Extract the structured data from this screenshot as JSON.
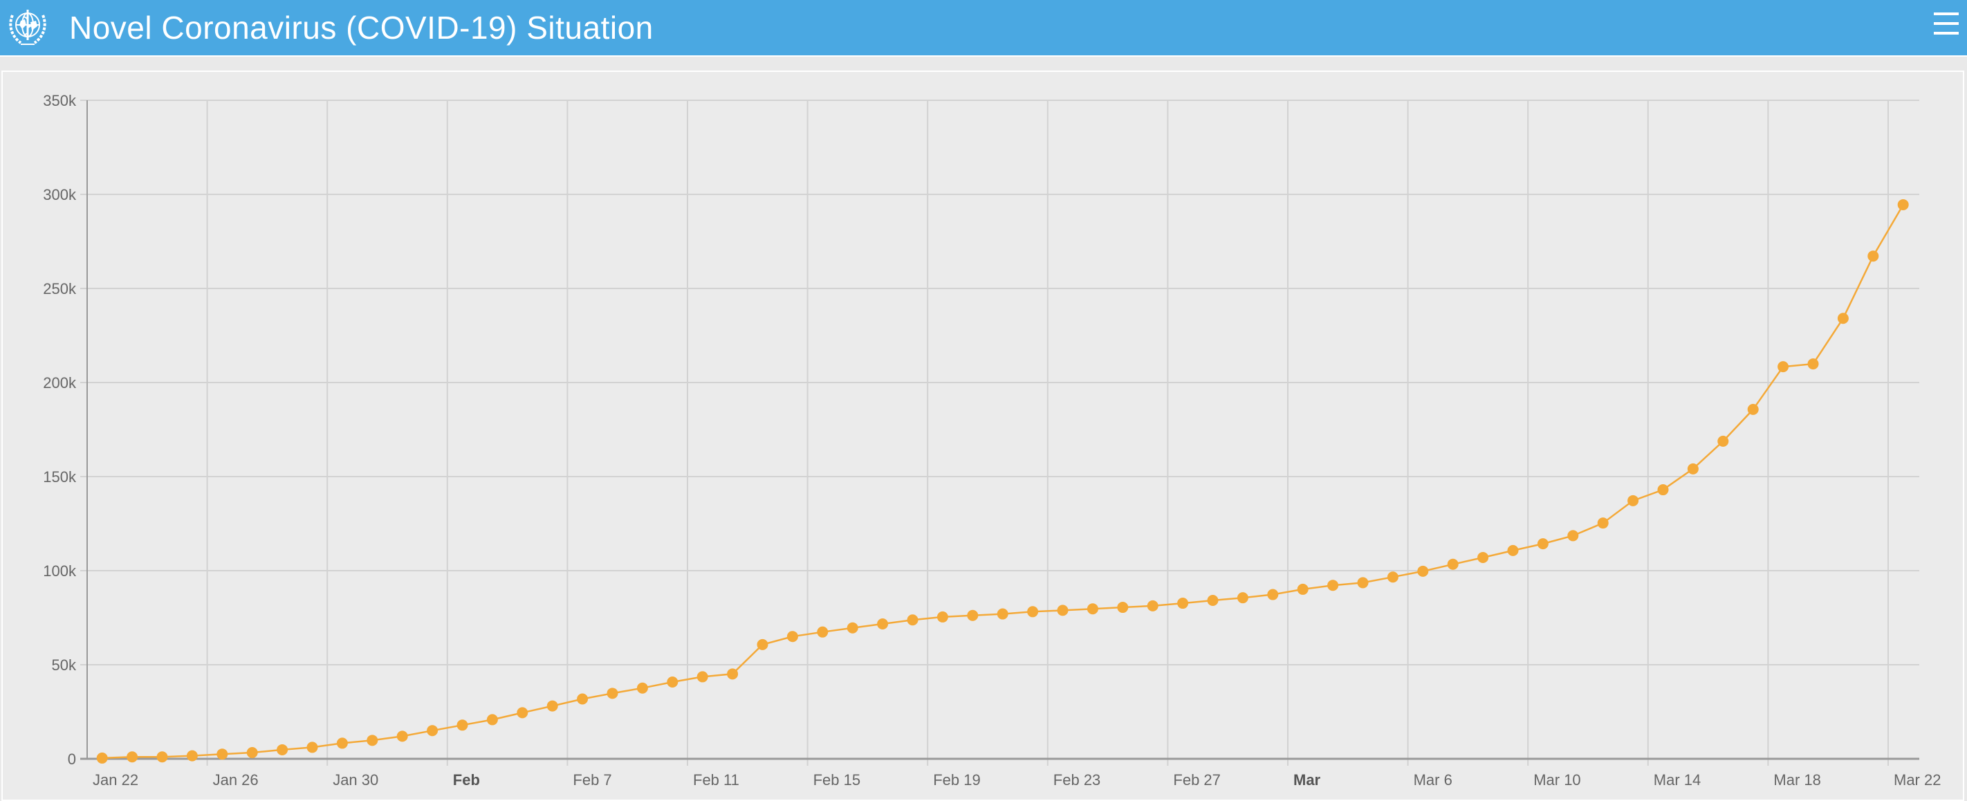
{
  "header": {
    "title": "Novel Coronavirus (COVID-19) Situation",
    "logo_icon": "who-emblem-icon",
    "menu_icon": "hamburger-menu-icon",
    "background_color": "#4aa8e2"
  },
  "chart_data": {
    "type": "line",
    "title": "",
    "xlabel": "",
    "ylabel": "",
    "x": [
      "2020-01-22",
      "2020-01-23",
      "2020-01-24",
      "2020-01-25",
      "2020-01-26",
      "2020-01-27",
      "2020-01-28",
      "2020-01-29",
      "2020-01-30",
      "2020-01-31",
      "2020-02-01",
      "2020-02-02",
      "2020-02-03",
      "2020-02-04",
      "2020-02-05",
      "2020-02-06",
      "2020-02-07",
      "2020-02-08",
      "2020-02-09",
      "2020-02-10",
      "2020-02-11",
      "2020-02-12",
      "2020-02-13",
      "2020-02-14",
      "2020-02-15",
      "2020-02-16",
      "2020-02-17",
      "2020-02-18",
      "2020-02-19",
      "2020-02-20",
      "2020-02-21",
      "2020-02-22",
      "2020-02-23",
      "2020-02-24",
      "2020-02-25",
      "2020-02-26",
      "2020-02-27",
      "2020-02-28",
      "2020-02-29",
      "2020-03-01",
      "2020-03-02",
      "2020-03-03",
      "2020-03-04",
      "2020-03-05",
      "2020-03-06",
      "2020-03-07",
      "2020-03-08",
      "2020-03-09",
      "2020-03-10",
      "2020-03-11",
      "2020-03-12",
      "2020-03-13",
      "2020-03-14",
      "2020-03-15",
      "2020-03-16",
      "2020-03-17",
      "2020-03-18",
      "2020-03-19",
      "2020-03-20",
      "2020-03-21",
      "2020-03-22"
    ],
    "y": [
      400,
      1000,
      1000,
      1600,
      2500,
      3300,
      4800,
      6100,
      8300,
      9800,
      12000,
      15000,
      17900,
      20800,
      24500,
      28100,
      31800,
      34800,
      37600,
      40800,
      43600,
      45100,
      60700,
      65000,
      67400,
      69600,
      71700,
      73800,
      75400,
      76200,
      77000,
      78200,
      78900,
      79700,
      80500,
      81300,
      82700,
      84200,
      85600,
      87300,
      90100,
      92200,
      93600,
      96600,
      99700,
      103400,
      107000,
      110700,
      114300,
      118600,
      125300,
      137200,
      143000,
      154100,
      168800,
      185700,
      208400,
      209900,
      234100,
      267200,
      294500
    ],
    "ylim": [
      0,
      350000
    ],
    "y_ticks": [
      {
        "value": 0,
        "label": "0"
      },
      {
        "value": 50000,
        "label": "50k"
      },
      {
        "value": 100000,
        "label": "100k"
      },
      {
        "value": 150000,
        "label": "150k"
      },
      {
        "value": 200000,
        "label": "200k"
      },
      {
        "value": 250000,
        "label": "250k"
      },
      {
        "value": 300000,
        "label": "300k"
      },
      {
        "value": 350000,
        "label": "350k"
      }
    ],
    "x_ticks": [
      {
        "label": "Jan 22",
        "bold": false
      },
      {
        "label": "Jan 26",
        "bold": false
      },
      {
        "label": "Jan 30",
        "bold": false
      },
      {
        "label": "Feb",
        "bold": true
      },
      {
        "label": "Feb 7",
        "bold": false
      },
      {
        "label": "Feb 11",
        "bold": false
      },
      {
        "label": "Feb 15",
        "bold": false
      },
      {
        "label": "Feb 19",
        "bold": false
      },
      {
        "label": "Feb 23",
        "bold": false
      },
      {
        "label": "Feb 27",
        "bold": false
      },
      {
        "label": "Mar",
        "bold": true
      },
      {
        "label": "Mar 6",
        "bold": false
      },
      {
        "label": "Mar 10",
        "bold": false
      },
      {
        "label": "Mar 14",
        "bold": false
      },
      {
        "label": "Mar 18",
        "bold": false
      },
      {
        "label": "Mar 22",
        "bold": false
      }
    ],
    "grid": true,
    "markers": true,
    "legend": "none",
    "colors": {
      "series": "#f4a938",
      "grid": "#d2d2d2",
      "axis": "#999999",
      "background": "#ebebeb"
    }
  }
}
